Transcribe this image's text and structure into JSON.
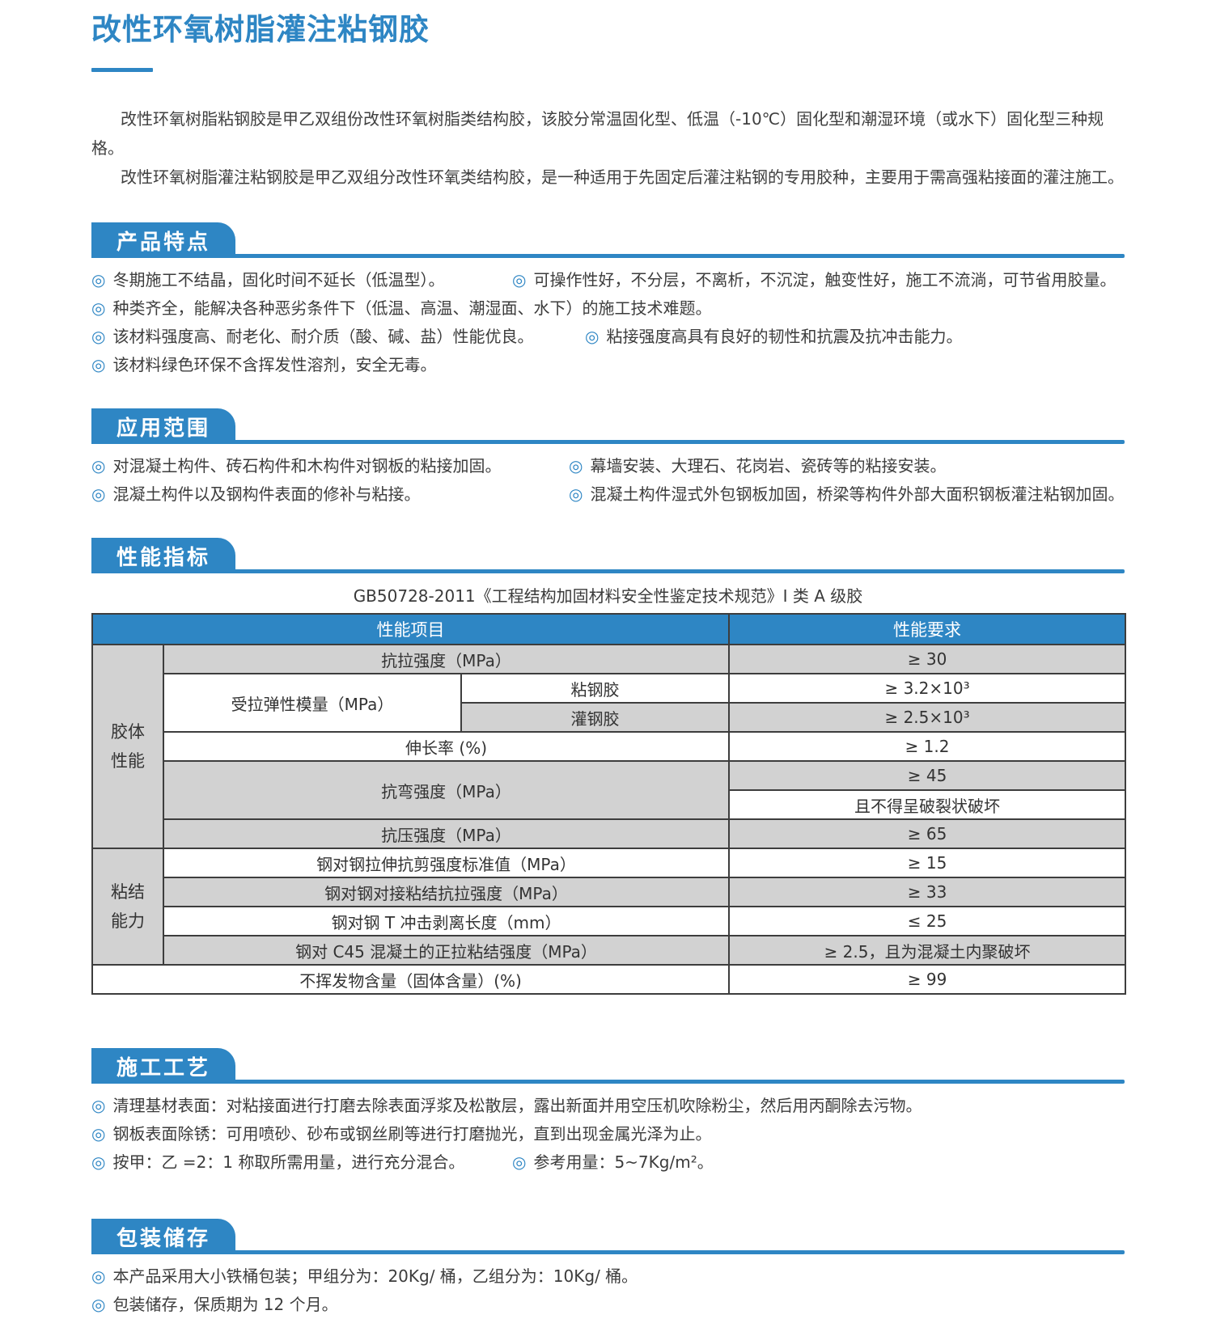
{
  "colors": {
    "accent": "#2e86c4",
    "table_header_bg": "#2e86c4",
    "row_gray": "#d2d2d2",
    "border": "#3d3d3d"
  },
  "icons": {
    "bullet": "◎"
  },
  "page": {
    "title": "改性环氧树脂灌注粘钢胶",
    "intro": [
      "改性环氧树脂粘钢胶是甲乙双组份改性环氧树脂类结构胶，该胶分常温固化型、低温（-10℃）固化型和潮湿环境（或水下）固化型三种规格。",
      "改性环氧树脂灌注粘钢胶是甲乙双组分改性环氧类结构胶，是一种适用于先固定后灌注粘钢的专用胶种，主要用于需高强粘接面的灌注施工。"
    ]
  },
  "features": {
    "heading": "产品特点",
    "rows": [
      {
        "cols": [
          "冬期施工不结晶，固化时间不延长（低温型）。",
          "可操作性好，不分层，不离析，不沉淀，触变性好，施工不流淌，可节省用胶量。"
        ]
      },
      {
        "cols": [
          "种类齐全，能解决各种恶劣条件下（低温、高温、潮湿面、水下）的施工技术难题。"
        ]
      },
      {
        "cols": [
          "该材料强度高、耐老化、耐介质（酸、碱、盐）性能优良。",
          "粘接强度高具有良好的韧性和抗震及抗冲击能力。"
        ]
      },
      {
        "cols": [
          "该材料绿色环保不含挥发性溶剂，安全无毒。"
        ]
      }
    ]
  },
  "applications": {
    "heading": "应用范围",
    "rows": [
      {
        "cols": [
          "对混凝土构件、砖石构件和木构件对钢板的粘接加固。",
          "幕墙安装、大理石、花岗岩、瓷砖等的粘接安装。"
        ]
      },
      {
        "cols": [
          "混凝土构件以及钢构件表面的修补与粘接。",
          "混凝土构件湿式外包钢板加固，桥梁等构件外部大面积钢板灌注粘钢加固。"
        ]
      }
    ]
  },
  "performance": {
    "heading": "性能指标",
    "caption": "GB50728-2011《工程结构加固材料安全性鉴定技术规范》I 类 A 级胶",
    "table": {
      "header": {
        "item": "性能项目",
        "requirement": "性能要求"
      },
      "groups": {
        "glue": "胶体性能",
        "bond": "粘结能力"
      },
      "rows": {
        "tensile": {
          "label": "抗拉强度（MPa）",
          "req": "≥ 30"
        },
        "modulus": {
          "label": "受拉弹性模量（MPa）",
          "sub1": "粘钢胶",
          "sub1_req": "≥ 3.2×10³",
          "sub2": "灌钢胶",
          "sub2_req": "≥ 2.5×10³"
        },
        "elong": {
          "label": "伸长率 (%)",
          "req": "≥ 1.2"
        },
        "bend": {
          "label": "抗弯强度（MPa）",
          "req1": "≥ 45",
          "req2": "且不得呈破裂状破坏"
        },
        "compress": {
          "label": "抗压强度（MPa）",
          "req": "≥ 65"
        },
        "shear": {
          "label": "钢对钢拉伸抗剪强度标准值（MPa）",
          "req": "≥ 15"
        },
        "butt": {
          "label": "钢对钢对接粘结抗拉强度（MPa）",
          "req": "≥ 33"
        },
        "peel": {
          "label": "钢对钢 T 冲击剥离长度（mm）",
          "req": "≤ 25"
        },
        "c45": {
          "label": "钢对 C45 混凝土的正拉粘结强度（MPa）",
          "req": "≥ 2.5，且为混凝土内聚破坏"
        },
        "solid": {
          "label": "不挥发物含量（固体含量）(%)",
          "req": "≥ 99"
        }
      }
    }
  },
  "process": {
    "heading": "施工工艺",
    "rows": [
      {
        "cols": [
          "清理基材表面：对粘接面进行打磨去除表面浮浆及松散层，露出新面并用空压机吹除粉尘，然后用丙酮除去污物。"
        ]
      },
      {
        "cols": [
          "钢板表面除锈：可用喷砂、砂布或钢丝刷等进行打磨抛光，直到出现金属光泽为止。"
        ]
      },
      {
        "cols": [
          "按甲：乙 =2：1 称取所需用量，进行充分混合。",
          "参考用量：5~7Kg/m²。"
        ]
      }
    ]
  },
  "storage": {
    "heading": "包装储存",
    "rows": [
      {
        "cols": [
          "本产品采用大小铁桶包装；甲组分为：20Kg/ 桶，乙组分为：10Kg/ 桶。"
        ]
      },
      {
        "cols": [
          "包装储存，保质期为 12 个月。"
        ]
      }
    ]
  }
}
